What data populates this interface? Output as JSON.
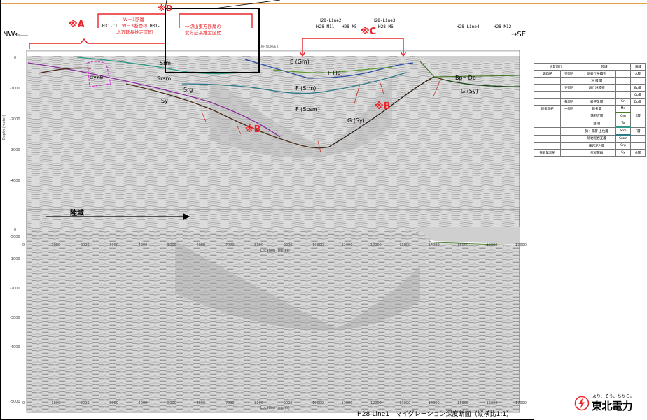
{
  "markers": {
    "A": "※A",
    "B1": "※B",
    "B2": "※B",
    "C": "※C",
    "D": "※D"
  },
  "directions": {
    "left": "NW←",
    "right": "→SE"
  },
  "lines": {
    "h31c1": "H31-C1",
    "h31": "H31-",
    "h28line2": "H28-Line2",
    "h28m11": "H28-M11",
    "h28m5": "H28-M5",
    "h28line3": "H28-Line3",
    "h28m6": "H28-M6",
    "h28line4": "H28-Line4",
    "h28m12": "H28-M12"
  },
  "annotations": {
    "w_fault_1": "W－1断層",
    "w_fault_2": "W－3断層の",
    "w_fault_3": "北方延長推定区間",
    "ichi_fault_1": "一切山東方断層の",
    "ichi_fault_2": "北方延長推定区間"
  },
  "cmp_label": "CMP NUMBER",
  "layers": {
    "srm": "Srm",
    "srsm": "Srsm",
    "srg": "Srg",
    "sy": "Sy",
    "dyke": "dyke",
    "e_gm": "E (Gm)",
    "f_to": "F (To)",
    "f_srm": "F (Srm)",
    "f_scsm": "F (Scsm)",
    "g_sy1": "G (Sy)",
    "g_sy2": "G (Sy)",
    "bp_dp": "Bp～Dp"
  },
  "axes": {
    "depth_ticks": [
      "0",
      "-1000",
      "-2000",
      "-3000",
      "-4000",
      "-5000"
    ],
    "dist_ticks": [
      "0",
      "1000",
      "2000",
      "3000",
      "4000",
      "5000",
      "6000",
      "7000",
      "8000",
      "9000",
      "10000",
      "11000",
      "12000",
      "13000",
      "14000",
      "15000",
      "16000",
      "17000"
    ],
    "xlabel": "Location (meter)",
    "ylabel": "Depth (meter)"
  },
  "rikuiki": "陸域",
  "legend": {
    "headers": [
      "地質時代",
      "陸域",
      "海域"
    ],
    "rows": [
      {
        "era": "第四紀",
        "sub": "完新世",
        "land": "新砂丘堆積物",
        "code": "",
        "sea": "A層"
      },
      {
        "era": "",
        "sub": "",
        "land": "沖 積 層",
        "code": "",
        "sea": ""
      },
      {
        "era": "",
        "sub": "更新世",
        "land": "段丘堆積物",
        "code": "",
        "sea": "Bp層"
      },
      {
        "era": "",
        "sub": "",
        "land": "",
        "code": "",
        "sea": "Cp層"
      },
      {
        "era": "",
        "sub": "鮮新世",
        "land": "砂子又層",
        "code": "Sn",
        "sea": "Dp層"
      },
      {
        "era": "新第三紀",
        "sub": "中新世",
        "land": "目名層",
        "code": "Mn",
        "sea": ""
      },
      {
        "era": "",
        "sub": "",
        "land": "蒲野沢層",
        "code": "Gm",
        "sea": "E層"
      },
      {
        "era": "",
        "sub": "",
        "land": "泊 層",
        "code": "To",
        "sea": ""
      },
      {
        "era": "",
        "sub": "",
        "land": "猿ヶ森層 上位層",
        "code": "Srm",
        "sea": "F層"
      },
      {
        "era": "",
        "sub": "",
        "land": "砂岩泥岩互層",
        "code": "Srsm",
        "sea": ""
      },
      {
        "era": "",
        "sub": "",
        "land": "礫岩泥岩層",
        "code": "Srg",
        "sea": ""
      },
      {
        "era": "先新第三紀",
        "sub": "",
        "land": "尻屋層群",
        "code": "Sy",
        "sea": "G層"
      }
    ]
  },
  "caption": "H28-Line1　マイグレーション深度断面（縦横比1:1）",
  "logo": {
    "tagline": "より、そう、ちから。",
    "name": "東北電力"
  },
  "colors": {
    "red": "#e8262b",
    "orange": "#e39b4c"
  }
}
